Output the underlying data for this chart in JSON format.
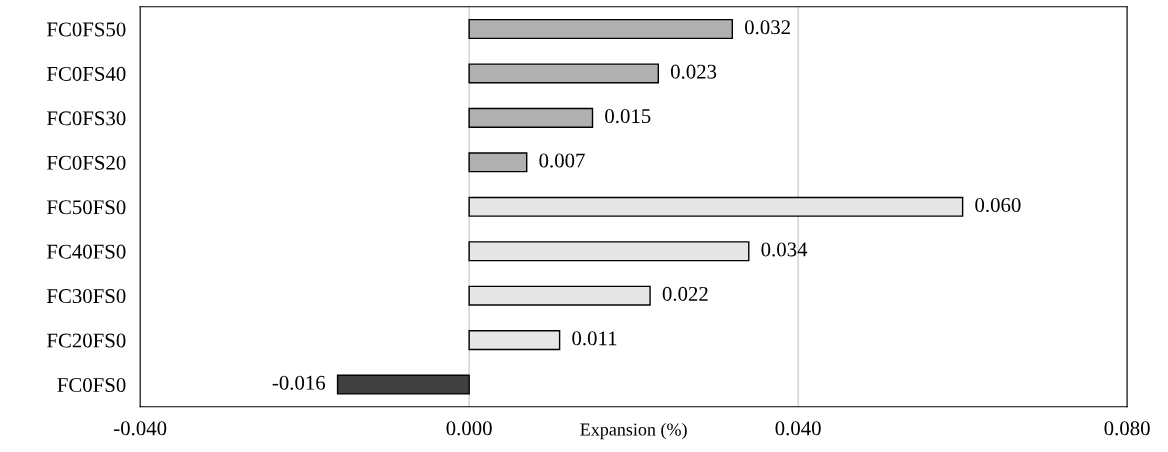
{
  "chart_data": {
    "type": "bar",
    "orientation": "horizontal",
    "xlabel": "Expansion (%)",
    "categories": [
      "FC0FS50",
      "FC0FS40",
      "FC0FS30",
      "FC0FS20",
      "FC50FS0",
      "FC40FS0",
      "FC30FS0",
      "FC20FS0",
      "FC0FS0"
    ],
    "values": [
      0.032,
      0.023,
      0.015,
      0.007,
      0.06,
      0.034,
      0.022,
      0.011,
      -0.016
    ],
    "value_labels": [
      "0.032",
      "0.023",
      "0.015",
      "0.007",
      "0.060",
      "0.034",
      "0.022",
      "0.011",
      "-0.016"
    ],
    "colors": [
      "#b0b0b0",
      "#b0b0b0",
      "#b0b0b0",
      "#b0b0b0",
      "#e6e6e6",
      "#e6e6e6",
      "#e6e6e6",
      "#e6e6e6",
      "#404040"
    ],
    "xlim": [
      -0.04,
      0.08
    ],
    "xticks": [
      {
        "value": -0.04,
        "label": "-0.040"
      },
      {
        "value": 0,
        "label": "0.000"
      },
      {
        "value": 0.04,
        "label": "0.040"
      },
      {
        "value": 0.08,
        "label": "0.080"
      }
    ],
    "grid": "x",
    "legend": false
  }
}
